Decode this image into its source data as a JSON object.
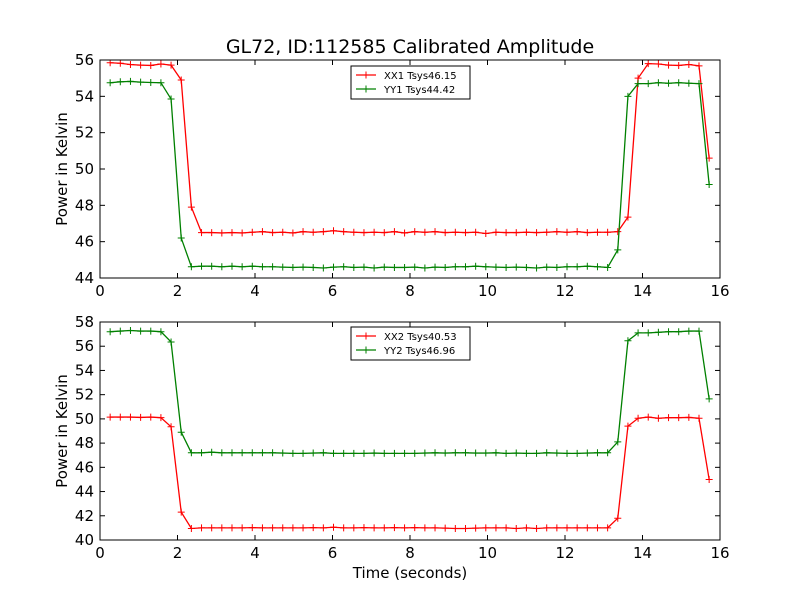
{
  "title": "GL72, ID:112585 Calibrated Amplitude",
  "xlabel": "Time (seconds)",
  "chart_data": [
    {
      "type": "line",
      "title": "GL72, ID:112585 Calibrated Amplitude",
      "xlabel": "",
      "ylabel": "Power in Kelvin",
      "xlim": [
        0,
        16
      ],
      "ylim": [
        44,
        56
      ],
      "xticks": [
        0,
        2,
        4,
        6,
        8,
        10,
        12,
        14,
        16
      ],
      "yticks": [
        44,
        46,
        48,
        50,
        52,
        54,
        56
      ],
      "grid": false,
      "legend_position": "top-center",
      "x": [
        0.262,
        0.524,
        0.786,
        1.048,
        1.31,
        1.572,
        1.834,
        2.096,
        2.358,
        2.62,
        2.882,
        3.144,
        3.406,
        3.668,
        3.93,
        4.192,
        4.454,
        4.716,
        4.978,
        5.24,
        5.502,
        5.764,
        6.026,
        6.288,
        6.55,
        6.812,
        7.074,
        7.336,
        7.598,
        7.86,
        8.122,
        8.384,
        8.646,
        8.908,
        9.17,
        9.432,
        9.694,
        9.956,
        10.218,
        10.48,
        10.742,
        11.004,
        11.266,
        11.528,
        11.79,
        12.052,
        12.314,
        12.576,
        12.838,
        13.1,
        13.362,
        13.624,
        13.886,
        14.148,
        14.41,
        14.672,
        14.934,
        15.196,
        15.458,
        15.72
      ],
      "series": [
        {
          "name": "XX1 Tsys46.15",
          "color": "#ff0000",
          "values": [
            55.85,
            55.82,
            55.75,
            55.72,
            55.7,
            55.78,
            55.72,
            54.9,
            47.9,
            46.5,
            46.5,
            46.48,
            46.5,
            46.48,
            46.52,
            46.55,
            46.5,
            46.52,
            46.48,
            46.55,
            46.52,
            46.55,
            46.6,
            46.55,
            46.52,
            46.5,
            46.52,
            46.5,
            46.55,
            46.48,
            46.55,
            46.52,
            46.55,
            46.5,
            46.52,
            46.5,
            46.52,
            46.45,
            46.52,
            46.5,
            46.5,
            46.52,
            46.5,
            46.52,
            46.55,
            46.52,
            46.55,
            46.5,
            46.52,
            46.52,
            46.55,
            47.35,
            55.0,
            55.8,
            55.78,
            55.72,
            55.7,
            55.75,
            55.68,
            50.6
          ]
        },
        {
          "name": "YY1 Tsys44.42",
          "color": "#008000",
          "values": [
            54.75,
            54.8,
            54.82,
            54.78,
            54.76,
            54.75,
            53.85,
            46.2,
            44.62,
            44.65,
            44.65,
            44.62,
            44.65,
            44.62,
            44.65,
            44.62,
            44.62,
            44.6,
            44.58,
            44.6,
            44.58,
            44.55,
            44.6,
            44.62,
            44.58,
            44.6,
            44.55,
            44.6,
            44.58,
            44.58,
            44.6,
            44.55,
            44.6,
            44.58,
            44.62,
            44.62,
            44.65,
            44.62,
            44.6,
            44.58,
            44.6,
            44.58,
            44.55,
            44.6,
            44.58,
            44.62,
            44.62,
            44.65,
            44.62,
            44.58,
            45.55,
            54.0,
            54.7,
            54.7,
            54.75,
            54.72,
            54.75,
            54.72,
            54.7,
            49.15
          ]
        }
      ]
    },
    {
      "type": "line",
      "title": "",
      "xlabel": "Time (seconds)",
      "ylabel": "Power in Kelvin",
      "xlim": [
        0,
        16
      ],
      "ylim": [
        40,
        58
      ],
      "xticks": [
        0,
        2,
        4,
        6,
        8,
        10,
        12,
        14,
        16
      ],
      "yticks": [
        40,
        42,
        44,
        46,
        48,
        50,
        52,
        54,
        56,
        58
      ],
      "grid": false,
      "legend_position": "top-center",
      "x": [
        0.262,
        0.524,
        0.786,
        1.048,
        1.31,
        1.572,
        1.834,
        2.096,
        2.358,
        2.62,
        2.882,
        3.144,
        3.406,
        3.668,
        3.93,
        4.192,
        4.454,
        4.716,
        4.978,
        5.24,
        5.502,
        5.764,
        6.026,
        6.288,
        6.55,
        6.812,
        7.074,
        7.336,
        7.598,
        7.86,
        8.122,
        8.384,
        8.646,
        8.908,
        9.17,
        9.432,
        9.694,
        9.956,
        10.218,
        10.48,
        10.742,
        11.004,
        11.266,
        11.528,
        11.79,
        12.052,
        12.314,
        12.576,
        12.838,
        13.1,
        13.362,
        13.624,
        13.886,
        14.148,
        14.41,
        14.672,
        14.934,
        15.196,
        15.458,
        15.72
      ],
      "series": [
        {
          "name": "XX2 Tsys40.53",
          "color": "#ff0000",
          "values": [
            50.15,
            50.15,
            50.15,
            50.12,
            50.15,
            50.1,
            49.35,
            42.3,
            40.95,
            41.0,
            41.0,
            41.0,
            41.0,
            41.0,
            41.02,
            41.0,
            41.0,
            41.0,
            41.0,
            41.0,
            41.02,
            41.0,
            41.05,
            41.0,
            41.0,
            41.02,
            41.0,
            41.0,
            41.02,
            41.0,
            41.02,
            41.0,
            41.0,
            40.98,
            40.95,
            40.95,
            40.98,
            41.0,
            41.0,
            41.0,
            40.95,
            41.0,
            40.95,
            41.0,
            41.0,
            41.0,
            41.0,
            41.0,
            41.0,
            41.0,
            41.8,
            49.4,
            50.05,
            50.15,
            50.05,
            50.1,
            50.1,
            50.12,
            50.05,
            45.0
          ]
        },
        {
          "name": "YY2 Tsys46.96",
          "color": "#008000",
          "values": [
            57.2,
            57.25,
            57.3,
            57.25,
            57.25,
            57.2,
            56.35,
            48.9,
            47.2,
            47.2,
            47.25,
            47.2,
            47.2,
            47.2,
            47.2,
            47.2,
            47.2,
            47.18,
            47.15,
            47.15,
            47.18,
            47.2,
            47.15,
            47.15,
            47.15,
            47.15,
            47.18,
            47.15,
            47.15,
            47.15,
            47.15,
            47.18,
            47.2,
            47.18,
            47.2,
            47.2,
            47.18,
            47.18,
            47.2,
            47.15,
            47.18,
            47.15,
            47.15,
            47.2,
            47.18,
            47.15,
            47.15,
            47.18,
            47.2,
            47.2,
            48.1,
            56.45,
            57.1,
            57.1,
            57.15,
            57.2,
            57.2,
            57.25,
            57.25,
            51.65
          ]
        }
      ]
    }
  ]
}
